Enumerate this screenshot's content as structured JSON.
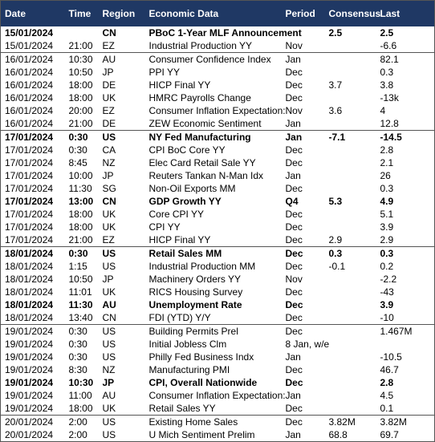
{
  "table": {
    "header": [
      "Date",
      "Time",
      "Region",
      "Economic Data",
      "Period",
      "Consensus",
      "Last"
    ],
    "rows": [
      {
        "bold": true,
        "cells": [
          "15/01/2024",
          null,
          "CN",
          "PBoC 1-Year MLF Announcement",
          null,
          "2.5",
          "2.5"
        ]
      },
      {
        "cells": [
          "15/01/2024",
          "21:00",
          "EZ",
          "Industrial Production YY",
          "Nov",
          null,
          "-6.6"
        ]
      },
      {
        "cells": [
          "16/01/2024",
          "10:30",
          "AU",
          "Consumer Confidence Index",
          "Jan",
          null,
          "82.1"
        ]
      },
      {
        "cells": [
          "16/01/2024",
          "10:50",
          "JP",
          "PPI YY",
          "Dec",
          null,
          "0.3"
        ]
      },
      {
        "cells": [
          "16/01/2024",
          "18:00",
          "DE",
          "HICP Final YY",
          "Dec",
          "3.7",
          "3.8"
        ]
      },
      {
        "cells": [
          "16/01/2024",
          "18:00",
          "UK",
          "HMRC Payrolls Change",
          "Dec",
          null,
          "-13k"
        ]
      },
      {
        "cells": [
          "16/01/2024",
          "20:00",
          "EZ",
          "Consumer Inflation Expectation:",
          "Nov",
          "3.6",
          "4"
        ]
      },
      {
        "cells": [
          "16/01/2024",
          "21:00",
          "DE",
          "ZEW Economic Sentiment",
          "Jan",
          null,
          "12.8"
        ]
      },
      {
        "bold": true,
        "cells": [
          "17/01/2024",
          "0:30",
          "US",
          "NY Fed Manufacturing",
          "Jan",
          "-7.1",
          "-14.5"
        ]
      },
      {
        "cells": [
          "17/01/2024",
          "0:30",
          "CA",
          "CPI BoC Core YY",
          "Dec",
          null,
          "2.8"
        ]
      },
      {
        "cells": [
          "17/01/2024",
          "8:45",
          "NZ",
          "Elec Card Retail Sale YY",
          "Dec",
          null,
          "2.1"
        ]
      },
      {
        "cells": [
          "17/01/2024",
          "10:00",
          "JP",
          "Reuters Tankan N-Man Idx",
          "Jan",
          null,
          "26"
        ]
      },
      {
        "cells": [
          "17/01/2024",
          "11:30",
          "SG",
          "Non-Oil Exports MM",
          "Dec",
          null,
          "0.3"
        ]
      },
      {
        "bold": true,
        "cells": [
          "17/01/2024",
          "13:00",
          "CN",
          "GDP Growth YY",
          "Q4",
          "5.3",
          "4.9"
        ]
      },
      {
        "cells": [
          "17/01/2024",
          "18:00",
          "UK",
          "Core CPI YY",
          "Dec",
          null,
          "5.1"
        ]
      },
      {
        "cells": [
          "17/01/2024",
          "18:00",
          "UK",
          "CPI YY",
          "Dec",
          null,
          "3.9"
        ]
      },
      {
        "cells": [
          "17/01/2024",
          "21:00",
          "EZ",
          "HICP Final YY",
          "Dec",
          "2.9",
          "2.9"
        ]
      },
      {
        "bold": true,
        "cells": [
          "18/01/2024",
          "0:30",
          "US",
          "Retail Sales MM",
          "Dec",
          "0.3",
          "0.3"
        ]
      },
      {
        "cells": [
          "18/01/2024",
          "1:15",
          "US",
          "Industrial Production MM",
          "Dec",
          "-0.1",
          "0.2"
        ]
      },
      {
        "cells": [
          "18/01/2024",
          "10:50",
          "JP",
          "Machinery Orders YY",
          "Nov",
          null,
          "-2.2"
        ]
      },
      {
        "cells": [
          "18/01/2024",
          "11:01",
          "UK",
          "RICS Housing Survey",
          "Dec",
          null,
          "-43"
        ]
      },
      {
        "bold": true,
        "cells": [
          "18/01/2024",
          "11:30",
          "AU",
          "Unemployment Rate",
          "Dec",
          null,
          "3.9"
        ]
      },
      {
        "cells": [
          "18/01/2024",
          "13:40",
          "CN",
          "FDI (YTD) Y/Y",
          "Dec",
          null,
          "-10"
        ]
      },
      {
        "cells": [
          "19/01/2024",
          "0:30",
          "US",
          "Building Permits Prel",
          "Dec",
          null,
          "1.467M"
        ]
      },
      {
        "cells": [
          "19/01/2024",
          "0:30",
          "US",
          "Initial Jobless Clm",
          "8 Jan, w/e",
          null,
          null
        ]
      },
      {
        "cells": [
          "19/01/2024",
          "0:30",
          "US",
          "Philly Fed Business Indx",
          "Jan",
          null,
          "-10.5"
        ]
      },
      {
        "cells": [
          "19/01/2024",
          "8:30",
          "NZ",
          "Manufacturing PMI",
          "Dec",
          null,
          "46.7"
        ]
      },
      {
        "bold": true,
        "cells": [
          "19/01/2024",
          "10:30",
          "JP",
          "CPI, Overall Nationwide",
          "Dec",
          null,
          "2.8"
        ]
      },
      {
        "cells": [
          "19/01/2024",
          "11:00",
          "AU",
          "Consumer Inflation Expectation:",
          "Jan",
          null,
          "4.5"
        ]
      },
      {
        "cells": [
          "19/01/2024",
          "18:00",
          "UK",
          "Retail Sales YY",
          "Dec",
          null,
          "0.1"
        ]
      },
      {
        "cells": [
          "20/01/2024",
          "2:00",
          "US",
          "Existing Home Sales",
          "Dec",
          "3.82M",
          "3.82M"
        ]
      },
      {
        "cells": [
          "20/01/2024",
          "2:00",
          "US",
          "U Mich Sentiment Prelim",
          "Jan",
          "68.8",
          "69.7"
        ]
      }
    ]
  }
}
